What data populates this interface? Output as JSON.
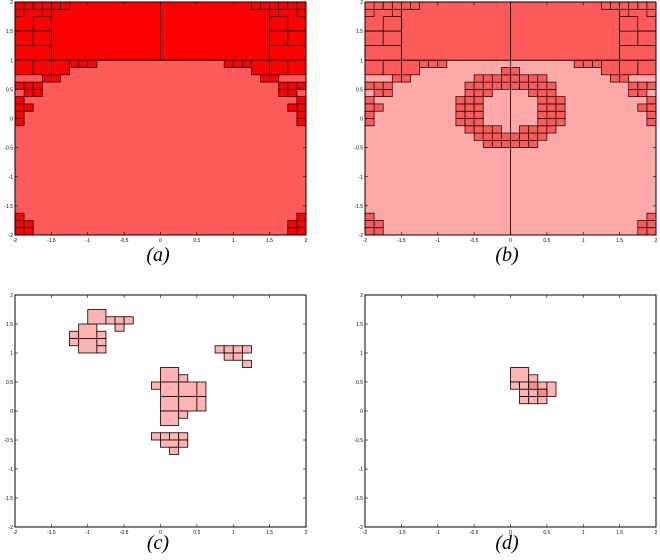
{
  "figure": {
    "captions": {
      "a": "(a)",
      "b": "(b)",
      "c": "(c)",
      "d": "(d)"
    }
  },
  "chart_data": [
    {
      "type": "heatmap",
      "panel": "a",
      "xlim": [
        -2,
        2
      ],
      "ylim": [
        -2,
        2
      ],
      "x_ticks": [
        "-2",
        "-1.5",
        "-1",
        "-0.5",
        "0",
        "0.5",
        "1",
        "1.5",
        "2"
      ],
      "y_ticks": [
        "-2",
        "-1.5",
        "-1",
        "-0.5",
        "0",
        "0.5",
        "1",
        "1.5",
        "2"
      ],
      "region_color": "#ff5a5a",
      "boundary_color": "#ff0000",
      "region": "unit-curve region below y = 1, bounded left and right by a staircase of subdivided boxes",
      "boxes": [
        [
          -1.5,
          1,
          1.5,
          2
        ],
        [
          0,
          1,
          1.5,
          2
        ],
        [
          -2,
          1.5,
          0.5,
          0.5
        ],
        [
          -2,
          1,
          0.5,
          0.5
        ],
        [
          1.5,
          1.5,
          0.5,
          0.5
        ],
        [
          1.5,
          1,
          0.5,
          0.5
        ],
        [
          -2,
          0.5,
          0.25,
          0.5
        ],
        [
          -1.75,
          0.75,
          0.25,
          0.25
        ],
        [
          -1.5,
          0.75,
          0.25,
          0.25
        ],
        [
          1.75,
          0.5,
          0.25,
          0.5
        ],
        [
          1.5,
          0.75,
          0.25,
          0.25
        ],
        [
          1.25,
          0.75,
          0.25,
          0.25
        ]
      ]
    },
    {
      "type": "heatmap",
      "panel": "b",
      "xlim": [
        -2,
        2
      ],
      "ylim": [
        -2,
        2
      ],
      "x_ticks": [
        "-2",
        "-1.5",
        "-1",
        "-0.5",
        "0",
        "0.5",
        "1",
        "1.5",
        "2"
      ],
      "y_ticks": [
        "-2",
        "-1.5",
        "-1",
        "-0.5",
        "0",
        "0.5",
        "1",
        "1.5",
        "2"
      ],
      "region_color": "#ffa8a8",
      "boundary_color": "#ff5a5a",
      "region": "same outer region as (a) plus an annulus of boxes around center (0, 0.15)",
      "ring_center": [
        0,
        0.15
      ],
      "ring_inner_radius": 0.4,
      "ring_outer_radius": 0.75
    },
    {
      "type": "heatmap",
      "panel": "c",
      "xlim": [
        -2,
        2
      ],
      "ylim": [
        -2,
        2
      ],
      "x_ticks": [
        "-2",
        "-1.5",
        "-1",
        "-0.5",
        "0",
        "0.5",
        "1",
        "1.5",
        "2"
      ],
      "y_ticks": [
        "-2",
        "-1.5",
        "-1",
        "-0.5",
        "0",
        "0.5",
        "1",
        "1.5",
        "2"
      ],
      "box_color": "#ffb3b3",
      "boxes": [
        [
          -1.25,
          1.125,
          0.125,
          0.125
        ],
        [
          -1.25,
          1.25,
          0.125,
          0.125
        ],
        [
          -1.125,
          1.0,
          0.25,
          0.25
        ],
        [
          -1.125,
          1.25,
          0.25,
          0.25
        ],
        [
          -0.875,
          1.25,
          0.125,
          0.125
        ],
        [
          -0.875,
          1.125,
          0.125,
          0.125
        ],
        [
          -0.875,
          1.0,
          0.125,
          0.125
        ],
        [
          -1.0,
          1.5,
          0.25,
          0.25
        ],
        [
          -0.75,
          1.5,
          0.125,
          0.125
        ],
        [
          -0.625,
          1.375,
          0.125,
          0.125
        ],
        [
          -0.625,
          1.5,
          0.125,
          0.125
        ],
        [
          -0.5,
          1.5,
          0.125,
          0.125
        ],
        [
          0.75,
          1.0,
          0.125,
          0.125
        ],
        [
          0.875,
          1.0,
          0.125,
          0.125
        ],
        [
          1.0,
          1.0,
          0.125,
          0.125
        ],
        [
          1.125,
          1.0,
          0.125,
          0.125
        ],
        [
          0.875,
          0.875,
          0.125,
          0.125
        ],
        [
          1.0,
          0.875,
          0.125,
          0.125
        ],
        [
          1.125,
          0.75,
          0.125,
          0.125
        ],
        [
          0.0,
          0.5,
          0.25,
          0.25
        ],
        [
          0.25,
          0.5,
          0.125,
          0.125
        ],
        [
          -0.125,
          0.375,
          0.125,
          0.125
        ],
        [
          0.0,
          0.25,
          0.25,
          0.25
        ],
        [
          0.25,
          0.25,
          0.25,
          0.25
        ],
        [
          0.5,
          0.25,
          0.125,
          0.25
        ],
        [
          0.0,
          0.0,
          0.25,
          0.25
        ],
        [
          0.25,
          0.0,
          0.25,
          0.25
        ],
        [
          0.5,
          0.0,
          0.125,
          0.25
        ],
        [
          0.0,
          -0.25,
          0.25,
          0.25
        ],
        [
          0.25,
          -0.125,
          0.125,
          0.125
        ],
        [
          -0.125,
          -0.5,
          0.125,
          0.125
        ],
        [
          0.0,
          -0.5,
          0.125,
          0.125
        ],
        [
          0.125,
          -0.5,
          0.125,
          0.125
        ],
        [
          0.25,
          -0.5,
          0.125,
          0.125
        ],
        [
          0.0,
          -0.625,
          0.25,
          0.125
        ],
        [
          0.25,
          -0.625,
          0.125,
          0.125
        ],
        [
          0.125,
          -0.75,
          0.125,
          0.125
        ]
      ]
    },
    {
      "type": "heatmap",
      "panel": "d",
      "xlim": [
        -2,
        2
      ],
      "ylim": [
        -2,
        2
      ],
      "x_ticks": [
        "-2",
        "-1.5",
        "-1",
        "-0.5",
        "0",
        "0.5",
        "1",
        "1.5",
        "2"
      ],
      "y_ticks": [
        "-2",
        "-1.5",
        "-1",
        "-0.5",
        "0",
        "0.5",
        "1",
        "1.5",
        "2"
      ],
      "box_color": "#ffb3b3",
      "boxes": [
        [
          0.0,
          0.5,
          0.25,
          0.25
        ],
        [
          0.25,
          0.5,
          0.125,
          0.125
        ],
        [
          0.0,
          0.375,
          0.125,
          0.125
        ],
        [
          0.125,
          0.375,
          0.125,
          0.125
        ],
        [
          0.25,
          0.375,
          0.125,
          0.125
        ],
        [
          0.375,
          0.375,
          0.125,
          0.125
        ],
        [
          0.5,
          0.25,
          0.125,
          0.25
        ],
        [
          0.125,
          0.25,
          0.125,
          0.125
        ],
        [
          0.25,
          0.25,
          0.125,
          0.125
        ],
        [
          0.375,
          0.25,
          0.125,
          0.125
        ],
        [
          0.125,
          0.125,
          0.125,
          0.125
        ],
        [
          0.25,
          0.125,
          0.125,
          0.125
        ],
        [
          0.375,
          0.125,
          0.125,
          0.125
        ]
      ]
    }
  ]
}
